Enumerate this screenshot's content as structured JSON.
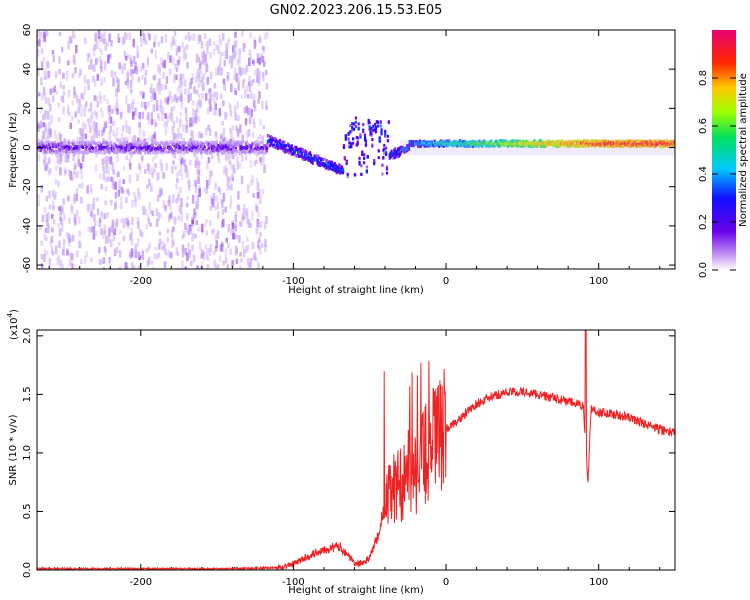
{
  "title": "GN02.2023.206.15.53.E05",
  "colors": {
    "snr_line": "#ee2222",
    "spectro_dot": "#7a1fe8",
    "frame": "#000000"
  },
  "chart_data": [
    {
      "type": "heatmap",
      "xlabel": "Height of straight line (km)",
      "ylabel": "Frequency (Hz)",
      "xlim": [
        -268,
        150
      ],
      "ylim": [
        -62,
        60
      ],
      "xticks": [
        -200,
        -100,
        0,
        100
      ],
      "yticks": [
        60,
        40,
        20,
        0,
        -20,
        -40,
        -60
      ],
      "colorbar": {
        "label": "Normalized spectral amplitude",
        "range": [
          0,
          1
        ],
        "ticks": [
          "0.0",
          "0.2",
          "0.4",
          "0.6",
          "0.8"
        ],
        "colormap": "rainbow (purple → blue → cyan → green → yellow → red → magenta)"
      },
      "features": [
        {
          "name": "noise band",
          "x_range": [
            -268,
            -118
          ],
          "frequency_range": [
            -62,
            60
          ],
          "amplitude": "low (0.0–0.2)"
        },
        {
          "name": "central line",
          "x_range": [
            -268,
            150
          ],
          "frequency_hz": 0,
          "amplitude": "rises from ~0.2 to ~0.95 toward x > 0"
        },
        {
          "name": "descending line",
          "x_range": [
            -118,
            -68
          ],
          "frequency_hz_range": [
            4,
            -12
          ]
        },
        {
          "name": "disturbance",
          "x_range": [
            -72,
            -38
          ],
          "frequency_hz_range": [
            -18,
            12
          ]
        }
      ]
    },
    {
      "type": "line",
      "xlabel": "Height of straight line (km)",
      "ylabel": "SNR (10 * v/v)",
      "scale_note": "(x10",
      "scale_exp": "4",
      "xlim": [
        -268,
        150
      ],
      "ylim": [
        0,
        2.05
      ],
      "xticks": [
        -200,
        -100,
        0,
        100
      ],
      "yticks": [
        "0.0",
        "0.5",
        "1.0",
        "1.5",
        "2.0"
      ],
      "series": [
        {
          "x": [
            -268,
            -200,
            -150,
            -110,
            -100,
            -90,
            -80,
            -70,
            -65,
            -60,
            -55,
            -50,
            -45,
            -40,
            -35,
            -30,
            -25,
            -20,
            -15,
            -10,
            -5,
            0,
            10,
            20,
            30,
            40,
            50,
            60,
            70,
            80,
            90,
            93,
            95,
            100,
            110,
            120,
            130,
            140,
            150
          ],
          "y": [
            0.01,
            0.01,
            0.01,
            0.02,
            0.05,
            0.12,
            0.18,
            0.2,
            0.14,
            0.05,
            0.06,
            0.1,
            0.28,
            0.55,
            0.7,
            0.72,
            0.85,
            0.8,
            0.95,
            1.05,
            1.15,
            1.2,
            1.3,
            1.42,
            1.48,
            1.52,
            1.52,
            1.5,
            1.47,
            1.44,
            1.4,
            0.75,
            1.38,
            1.35,
            1.33,
            1.3,
            1.25,
            1.2,
            1.17
          ]
        }
      ]
    }
  ]
}
